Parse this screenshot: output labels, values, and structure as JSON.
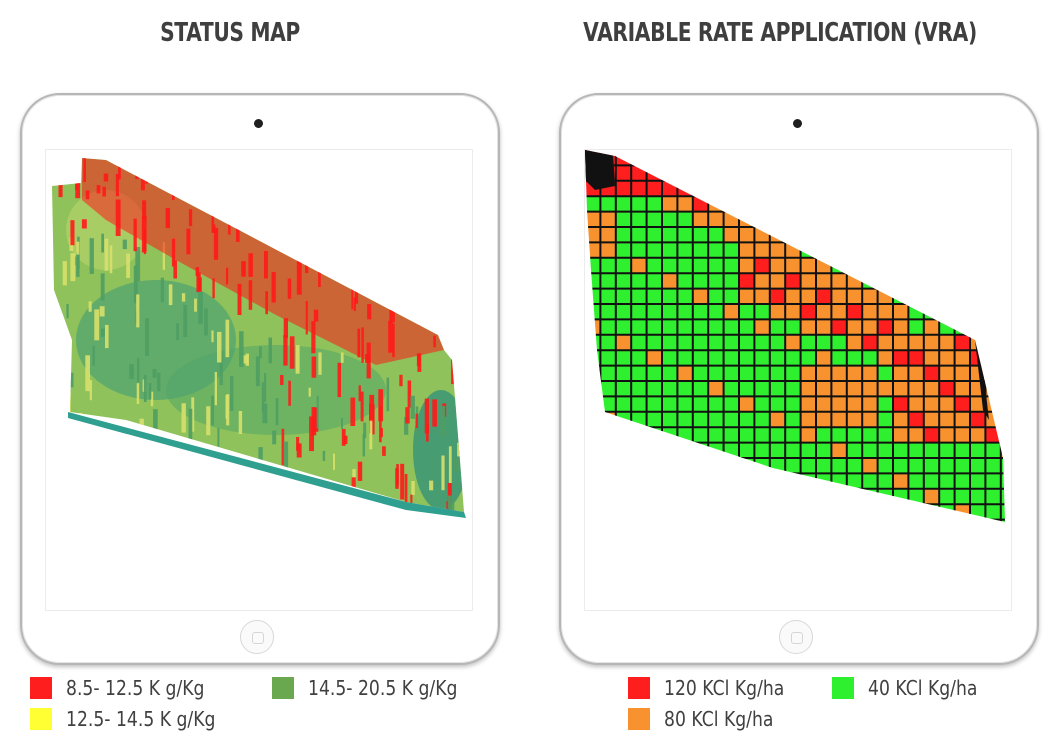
{
  "left_panel": {
    "title": "STATUS MAP",
    "legend": [
      {
        "label": "8.5- 12.5 K g/Kg",
        "color": "#ff1e1e"
      },
      {
        "label": "14.5- 20.5 K g/Kg",
        "color": "#6aa84f"
      },
      {
        "label": "12.5- 14.5 K g/Kg",
        "color": "#ffff33"
      }
    ]
  },
  "right_panel": {
    "title": "VARIABLE RATE APPLICATION (VRA)",
    "legend": [
      {
        "label": "120 KCl Kg/ha",
        "color": "#ff1e1e"
      },
      {
        "label": "40 KCl Kg/ha",
        "color": "#2ef02e"
      },
      {
        "label": "80 KCl Kg/ha",
        "color": "#f7922e"
      }
    ]
  }
}
